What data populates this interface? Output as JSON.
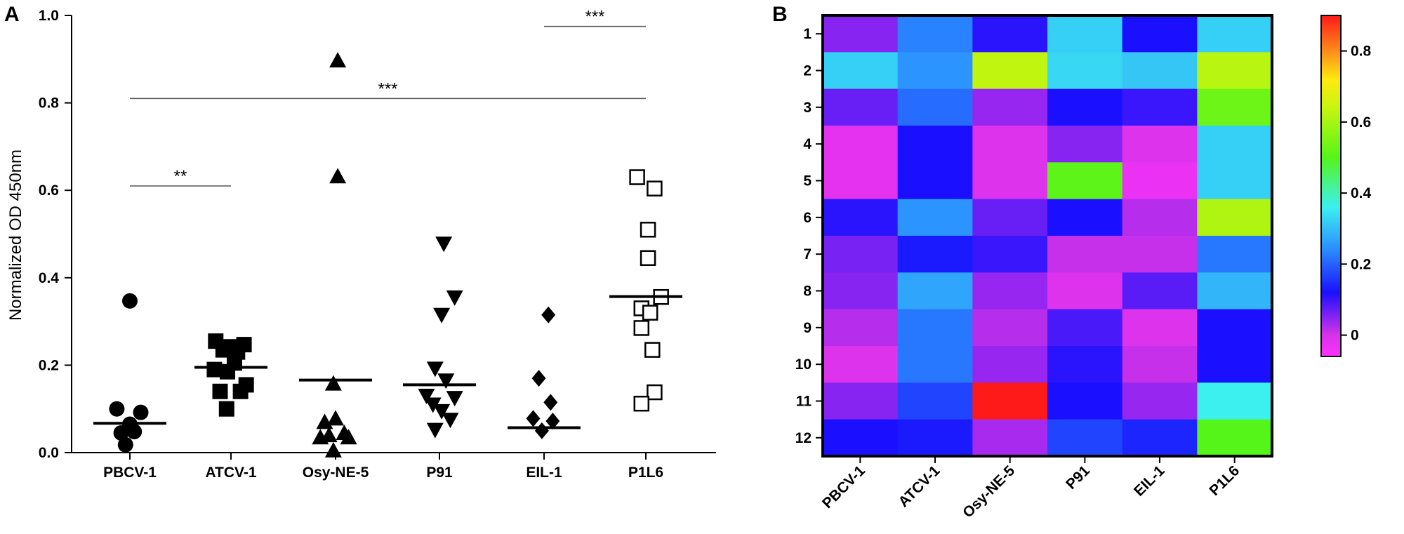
{
  "panels": {
    "A": {
      "letter": "A"
    },
    "B": {
      "letter": "B"
    }
  },
  "chart_data": [
    {
      "type": "scatter",
      "panel": "A",
      "title": "",
      "ylabel": "Normalized OD 450nm",
      "xlabel": "",
      "ylim": [
        0,
        1.0
      ],
      "yticks": [
        0.0,
        0.2,
        0.4,
        0.6,
        0.8,
        1.0
      ],
      "ytick_labels": [
        "0.0",
        "0.2",
        "0.4",
        "0.6",
        "0.8",
        "1.0"
      ],
      "grid": false,
      "categories": [
        "PBCV-1",
        "ATCV-1",
        "Osy-NE-5",
        "P91",
        "EIL-1",
        "P1L6"
      ],
      "series": [
        {
          "name": "PBCV-1",
          "marker": "circle",
          "median": 0.067,
          "points": [
            [
              -0.3,
              0.1
            ],
            [
              0.0,
              0.065
            ],
            [
              0.25,
              0.092
            ],
            [
              -0.2,
              0.045
            ],
            [
              0.1,
              0.048
            ],
            [
              -0.1,
              0.018
            ],
            [
              0.0,
              0.347
            ]
          ]
        },
        {
          "name": "ATCV-1",
          "marker": "square",
          "median": 0.195,
          "points": [
            [
              -0.35,
              0.255
            ],
            [
              0.0,
              0.242
            ],
            [
              0.3,
              0.247
            ],
            [
              -0.18,
              0.235
            ],
            [
              0.15,
              0.23
            ],
            [
              -0.38,
              0.19
            ],
            [
              0.08,
              0.205
            ],
            [
              -0.08,
              0.185
            ],
            [
              0.22,
              0.14
            ],
            [
              -0.25,
              0.14
            ],
            [
              0.35,
              0.155
            ],
            [
              -0.1,
              0.1
            ]
          ]
        },
        {
          "name": "Osy-NE-5",
          "marker": "triangle-up",
          "median": 0.166,
          "points": [
            [
              0.05,
              0.897
            ],
            [
              0.05,
              0.632
            ],
            [
              -0.05,
              0.158
            ],
            [
              -0.25,
              0.07
            ],
            [
              0.0,
              0.078
            ],
            [
              -0.15,
              0.04
            ],
            [
              0.2,
              0.045
            ],
            [
              -0.35,
              0.035
            ],
            [
              0.3,
              0.035
            ],
            [
              -0.05,
              0.005
            ]
          ]
        },
        {
          "name": "P91",
          "marker": "triangle-down",
          "median": 0.155,
          "points": [
            [
              0.1,
              0.478
            ],
            [
              0.35,
              0.355
            ],
            [
              0.05,
              0.315
            ],
            [
              -0.1,
              0.192
            ],
            [
              0.15,
              0.165
            ],
            [
              -0.3,
              0.13
            ],
            [
              0.35,
              0.125
            ],
            [
              -0.15,
              0.11
            ],
            [
              0.05,
              0.095
            ],
            [
              0.25,
              0.075
            ],
            [
              -0.1,
              0.052
            ]
          ]
        },
        {
          "name": "EIL-1",
          "marker": "diamond",
          "median": 0.057,
          "points": [
            [
              0.1,
              0.315
            ],
            [
              -0.12,
              0.17
            ],
            [
              0.15,
              0.115
            ],
            [
              -0.25,
              0.078
            ],
            [
              0.2,
              0.072
            ],
            [
              -0.05,
              0.05
            ]
          ]
        },
        {
          "name": "P1L6",
          "marker": "open-square",
          "median": 0.357,
          "points": [
            [
              -0.2,
              0.63
            ],
            [
              0.2,
              0.604
            ],
            [
              0.05,
              0.51
            ],
            [
              0.05,
              0.445
            ],
            [
              0.35,
              0.356
            ],
            [
              -0.1,
              0.33
            ],
            [
              0.1,
              0.32
            ],
            [
              -0.1,
              0.285
            ],
            [
              0.15,
              0.235
            ],
            [
              0.2,
              0.138
            ],
            [
              -0.1,
              0.112
            ]
          ]
        }
      ],
      "significance": [
        {
          "from": "PBCV-1",
          "to": "ATCV-1",
          "y": 0.61,
          "label": "**"
        },
        {
          "from": "PBCV-1",
          "to": "P1L6",
          "y": 0.81,
          "label": "***"
        },
        {
          "from": "EIL-1",
          "to": "P1L6",
          "y": 0.975,
          "label": "***"
        }
      ]
    },
    {
      "type": "heatmap",
      "panel": "B",
      "title": "",
      "xlabel": "",
      "ylabel": "",
      "columns": [
        "PBCV-1",
        "ATCV-1",
        "Osy-NE-5",
        "P91",
        "EIL-1",
        "P1L6"
      ],
      "rows": [
        "1",
        "2",
        "3",
        "4",
        "5",
        "6",
        "7",
        "8",
        "9",
        "10",
        "11",
        "12"
      ],
      "values": [
        [
          0.05,
          0.23,
          0.11,
          0.32,
          0.12,
          0.32
        ],
        [
          0.32,
          0.25,
          0.63,
          0.33,
          0.31,
          0.62
        ],
        [
          0.07,
          0.21,
          0.04,
          0.12,
          0.1,
          0.53
        ],
        [
          -0.02,
          0.12,
          -0.01,
          0.05,
          -0.01,
          0.32
        ],
        [
          -0.02,
          0.12,
          -0.01,
          0.51,
          -0.03,
          0.32
        ],
        [
          0.11,
          0.25,
          0.07,
          0.12,
          0.02,
          0.61
        ],
        [
          0.06,
          0.13,
          0.1,
          0.01,
          0.01,
          0.22
        ],
        [
          0.05,
          0.27,
          0.04,
          -0.01,
          0.08,
          0.29
        ],
        [
          0.02,
          0.22,
          0.02,
          0.09,
          -0.01,
          0.12
        ],
        [
          -0.01,
          0.22,
          0.04,
          0.11,
          0.01,
          0.12
        ],
        [
          0.05,
          0.17,
          0.9,
          0.12,
          0.04,
          0.36
        ],
        [
          0.12,
          0.13,
          0.03,
          0.17,
          0.14,
          0.5
        ]
      ],
      "colorbar": {
        "range": [
          -0.06,
          0.9
        ],
        "ticks": [
          0,
          0.2,
          0.4,
          0.6,
          0.8
        ],
        "tick_labels": [
          "0",
          "0.2",
          "0.4",
          "0.6",
          "0.8"
        ],
        "stops": [
          {
            "v": -0.06,
            "c": "#ff30ff"
          },
          {
            "v": 0.0,
            "c": "#d633e8"
          },
          {
            "v": 0.12,
            "c": "#1a10ff"
          },
          {
            "v": 0.24,
            "c": "#2a8cff"
          },
          {
            "v": 0.36,
            "c": "#3cf0f0"
          },
          {
            "v": 0.5,
            "c": "#55f51a"
          },
          {
            "v": 0.64,
            "c": "#c8f50f"
          },
          {
            "v": 0.72,
            "c": "#ffea10"
          },
          {
            "v": 0.8,
            "c": "#ff8c1a"
          },
          {
            "v": 0.9,
            "c": "#ff1a1a"
          }
        ]
      }
    }
  ]
}
